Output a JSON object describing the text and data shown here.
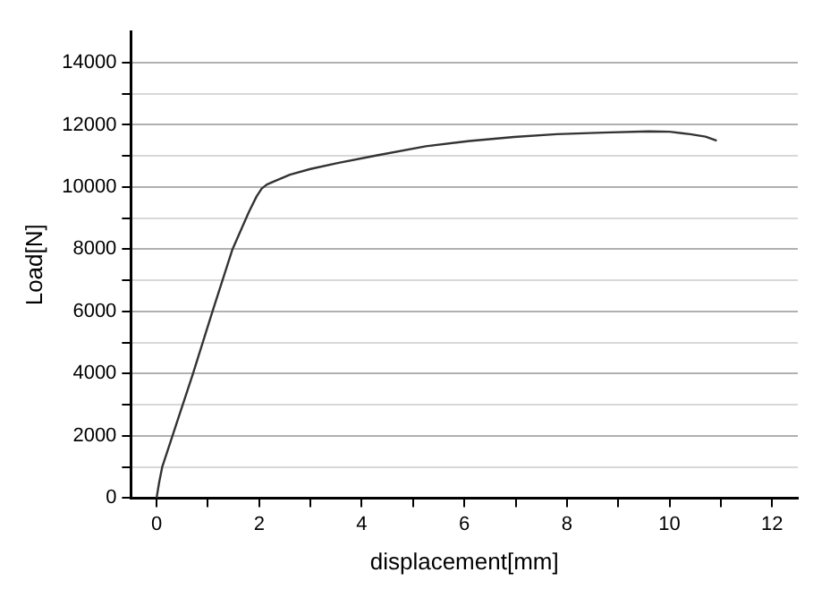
{
  "chart_data": {
    "type": "line",
    "xlabel": "displacement[mm]",
    "ylabel": "Load[N]",
    "series": [
      {
        "color": "#333333",
        "x": [
          0,
          0.05,
          0.11,
          0.31,
          0.71,
          1.09,
          1.48,
          1.8,
          1.95,
          2.05,
          2.15,
          2.26,
          2.6,
          3.0,
          3.53,
          4.3,
          5.25,
          6.1,
          6.97,
          7.8,
          8.7,
          9.6,
          10.0,
          10.4,
          10.7,
          10.92
        ],
        "values": [
          0,
          500,
          1000,
          2000,
          4000,
          6000,
          8000,
          9200,
          9700,
          9950,
          10080,
          10160,
          10400,
          10580,
          10770,
          11020,
          11310,
          11480,
          11610,
          11700,
          11750,
          11790,
          11780,
          11700,
          11620,
          11490
        ]
      }
    ],
    "xlim": [
      -0.5,
      12.5
    ],
    "xticks": [
      0,
      {
        "value": 1,
        "label": null
      },
      2,
      {
        "value": 3,
        "label": null
      },
      4,
      {
        "value": 5,
        "label": null
      },
      6,
      {
        "value": 7,
        "label": null
      },
      8,
      {
        "value": 9,
        "label": null
      },
      10,
      {
        "value": 11,
        "label": null
      },
      12
    ],
    "ylim": [
      0,
      15000
    ],
    "yticks": [
      0,
      {
        "value": 1000,
        "label": null
      },
      2000,
      {
        "value": 3000,
        "label": null
      },
      4000,
      {
        "value": 5000,
        "label": null
      },
      6000,
      {
        "value": 7000,
        "label": null
      },
      8000,
      {
        "value": 9000,
        "label": null
      },
      10000,
      {
        "value": 11000,
        "label": null
      },
      12000,
      {
        "value": 13000,
        "label": null
      },
      14000
    ],
    "grid": "y",
    "legend": false,
    "marker": "none",
    "line_style": "solid"
  }
}
